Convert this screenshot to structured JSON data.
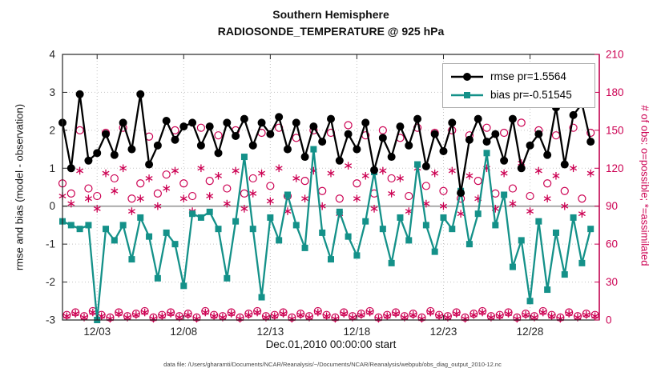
{
  "chart_data": {
    "type": "line",
    "title": "Southern Hemisphere",
    "subtitle": "RADIOSONDE_TEMPERATURE @ 925 hPa",
    "xlabel": "Dec.01,2010 00:00:00 start",
    "ylabel_left": "rmse and bias (model - observation)",
    "ylabel_right": "# of obs: o=possible; *=assimilated",
    "footer": "data file: /Users/gharamti/Documents/NCAR/Reanalysis/~/Documents/NCAR/Reanalysis/webpub/obs_diag_output_2010-12.nc",
    "grid": true,
    "legend_position": "top-right",
    "x_range_days": [
      0,
      31
    ],
    "x_ticks": [
      {
        "day": 2,
        "label": "12/03"
      },
      {
        "day": 7,
        "label": "12/08"
      },
      {
        "day": 12,
        "label": "12/13"
      },
      {
        "day": 17,
        "label": "12/18"
      },
      {
        "day": 22,
        "label": "12/23"
      },
      {
        "day": 27,
        "label": "12/28"
      }
    ],
    "left_axis": {
      "min": -3,
      "max": 4,
      "ticks": [
        4,
        3,
        2,
        1,
        0,
        -1,
        -2,
        -3
      ],
      "color": "#262626"
    },
    "right_axis": {
      "min": 0,
      "max": 210,
      "ticks": [
        210,
        180,
        150,
        120,
        90,
        60,
        30,
        0
      ],
      "color": "#cc0052"
    },
    "legend": [
      {
        "label": "rmse pr=1.5564",
        "color": "#000000",
        "marker": "circle"
      },
      {
        "label": "bias pr=-0.51545",
        "color": "#149189",
        "marker": "square"
      }
    ],
    "series": [
      {
        "name": "rmse",
        "axis": "left",
        "color": "#000000",
        "marker": "filled-circle",
        "line": true,
        "x_start": 0,
        "x_step": 0.5,
        "values": [
          2.2,
          1.0,
          2.95,
          1.2,
          1.4,
          1.9,
          1.35,
          2.2,
          1.5,
          2.95,
          1.1,
          1.6,
          2.25,
          1.75,
          2.1,
          2.2,
          1.6,
          2.1,
          1.4,
          2.2,
          1.85,
          2.3,
          1.6,
          2.2,
          1.9,
          2.35,
          1.5,
          2.2,
          1.3,
          2.1,
          1.7,
          2.3,
          1.2,
          1.9,
          1.5,
          2.2,
          0.95,
          1.8,
          1.3,
          2.1,
          1.6,
          2.3,
          1.05,
          1.9,
          1.45,
          2.2,
          0.35,
          1.75,
          2.3,
          1.7,
          1.9,
          1.2,
          2.3,
          1.0,
          1.6,
          1.9,
          1.35,
          2.6,
          1.1,
          2.4,
          2.7,
          1.7
        ]
      },
      {
        "name": "bias",
        "axis": "left",
        "color": "#149189",
        "marker": "filled-square",
        "line": true,
        "x_start": 0,
        "x_step": 0.5,
        "values": [
          -0.4,
          -0.5,
          -0.6,
          -0.5,
          -3.0,
          -0.6,
          -0.9,
          -0.5,
          -1.4,
          -0.3,
          -0.8,
          -1.9,
          -0.7,
          -1.0,
          -2.1,
          -0.2,
          -0.3,
          -0.15,
          -0.6,
          -1.9,
          -0.4,
          1.3,
          -0.6,
          -2.4,
          -0.3,
          -0.9,
          0.3,
          -0.5,
          -1.1,
          1.5,
          -0.7,
          -1.4,
          -0.15,
          -0.8,
          -1.3,
          -0.4,
          0.9,
          -0.6,
          -1.5,
          -0.3,
          -0.9,
          1.1,
          -0.5,
          -1.2,
          -0.3,
          -0.6,
          0.4,
          -1.0,
          -0.2,
          1.4,
          -0.5,
          0.3,
          -1.6,
          -0.9,
          -2.5,
          -0.4,
          -2.2,
          -0.7,
          -1.8,
          -0.3,
          -1.5,
          -0.6
        ]
      },
      {
        "name": "possible-obs-synoptic",
        "axis": "right",
        "color": "#cc0052",
        "marker": "open-circle",
        "line": false,
        "x_start": 0,
        "x_step": 0.5,
        "values": [
          108,
          100,
          150,
          104,
          98,
          148,
          112,
          152,
          96,
          108,
          145,
          100,
          115,
          150,
          108,
          98,
          152,
          110,
          146,
          104,
          150,
          100,
          112,
          148,
          106,
          152,
          98,
          144,
          110,
          150,
          102,
          148,
          96,
          154,
          108,
          146,
          100,
          150,
          112,
          144,
          98,
          152,
          106,
          148,
          102,
          150,
          96,
          146,
          110,
          152,
          100,
          148,
          104,
          156,
          98,
          150,
          108,
          146,
          102,
          152,
          96,
          148
        ]
      },
      {
        "name": "assimilated-obs-synoptic",
        "axis": "right",
        "color": "#cc0052",
        "marker": "asterisk",
        "line": false,
        "x_start": 0,
        "x_step": 0.5,
        "values": [
          98,
          92,
          118,
          96,
          88,
          116,
          102,
          120,
          86,
          96,
          112,
          90,
          104,
          118,
          96,
          86,
          120,
          98,
          114,
          92,
          118,
          88,
          100,
          116,
          94,
          120,
          86,
          112,
          96,
          118,
          90,
          116,
          84,
          122,
          96,
          114,
          88,
          118,
          100,
          112,
          86,
          120,
          92,
          116,
          90,
          118,
          84,
          114,
          96,
          120,
          88,
          116,
          92,
          124,
          86,
          118,
          96,
          114,
          90,
          120,
          84,
          116
        ]
      },
      {
        "name": "possible-obs-offhours",
        "axis": "right",
        "color": "#cc0052",
        "marker": "open-circle",
        "line": false,
        "x_start": 0.25,
        "x_step": 0.5,
        "values": [
          4,
          6,
          3,
          7,
          4,
          2,
          6,
          3,
          5,
          7,
          2,
          4,
          6,
          3,
          5,
          2,
          7,
          4,
          3,
          6,
          2,
          5,
          7,
          3,
          4,
          6,
          2,
          5,
          3,
          7,
          4,
          2,
          6,
          3,
          5,
          7,
          2,
          4,
          6,
          3,
          5,
          2,
          7,
          4,
          3,
          6,
          2,
          5,
          7,
          3,
          4,
          6,
          2,
          5,
          3,
          7,
          4,
          2,
          6,
          3,
          5,
          4
        ]
      },
      {
        "name": "assimilated-obs-offhours",
        "axis": "right",
        "color": "#cc0052",
        "marker": "asterisk",
        "line": false,
        "x_start": 0.25,
        "x_step": 0.5,
        "values": [
          3,
          5,
          2,
          6,
          3,
          1,
          5,
          2,
          4,
          6,
          1,
          3,
          5,
          2,
          4,
          1,
          6,
          3,
          2,
          5,
          1,
          4,
          6,
          2,
          3,
          5,
          1,
          4,
          2,
          6,
          3,
          1,
          5,
          2,
          4,
          6,
          1,
          3,
          5,
          2,
          4,
          1,
          6,
          3,
          2,
          5,
          1,
          4,
          6,
          2,
          3,
          5,
          1,
          4,
          2,
          6,
          3,
          1,
          5,
          2,
          4,
          3
        ]
      }
    ]
  }
}
